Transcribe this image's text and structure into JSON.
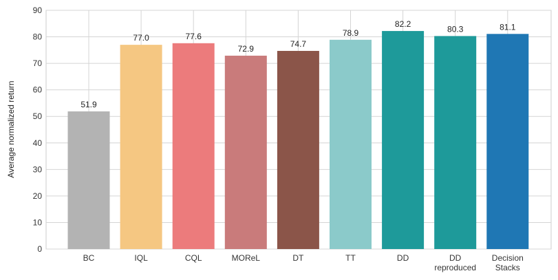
{
  "chart_data": {
    "type": "bar",
    "title": "",
    "xlabel": "",
    "ylabel": "Average normalized return",
    "ylim": [
      0,
      90
    ],
    "yticks": [
      0,
      10,
      20,
      30,
      40,
      50,
      60,
      70,
      80,
      90
    ],
    "grid": true,
    "categories": [
      [
        "BC"
      ],
      [
        "IQL"
      ],
      [
        "CQL"
      ],
      [
        "MOReL"
      ],
      [
        "DT"
      ],
      [
        "TT"
      ],
      [
        "DD"
      ],
      [
        "DD",
        "reproduced"
      ],
      [
        "Decision",
        "Stacks"
      ]
    ],
    "values": [
      51.9,
      77.0,
      77.6,
      72.9,
      74.7,
      78.9,
      82.2,
      80.3,
      81.1
    ],
    "value_labels": [
      "51.9",
      "77.0",
      "77.6",
      "72.9",
      "74.7",
      "78.9",
      "82.2",
      "80.3",
      "81.1"
    ],
    "colors": [
      "#b3b3b3",
      "#f5c782",
      "#ec7b7c",
      "#c97b7b",
      "#8b5549",
      "#8bcaca",
      "#1e9a9a",
      "#1e9a9a",
      "#1f77b4"
    ]
  }
}
